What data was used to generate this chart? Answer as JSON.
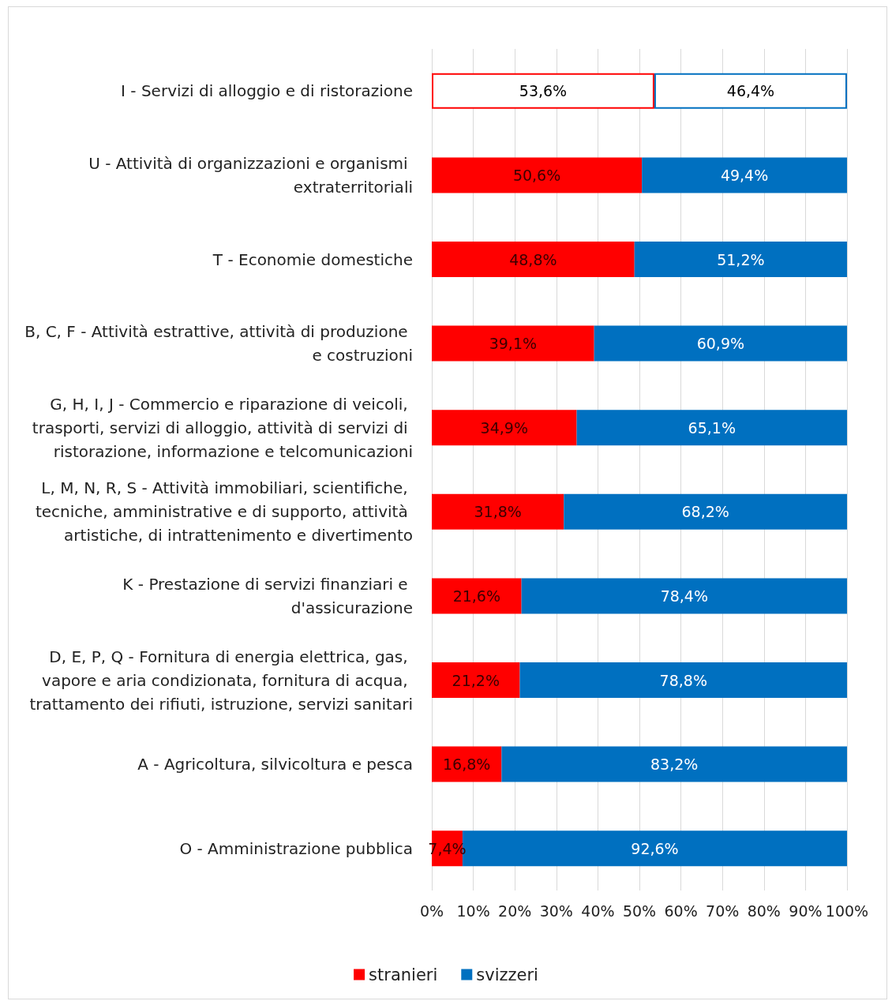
{
  "chart_data": {
    "type": "bar",
    "orientation": "horizontal",
    "stacked": true,
    "categories": [
      "I - Servizi di alloggio e di ristorazione",
      "U - Attività di organizzazioni e organismi extraterritoriali",
      "T - Economie domestiche",
      "B, C, F - Attività estrattive, attività di produzione e costruzioni",
      "G, H, I, J - Commercio e riparazione di veicoli, trasporti, servizi di alloggio, attività di servizi di ristorazione, informazione e telcomunicazioni",
      "L, M, N, R, S - Attività immobiliari, scientifiche, tecniche, amministrative e di supporto, attività artistiche, di intrattenimento e divertimento",
      "K - Prestazione di servizi finanziari e d'assicurazione",
      "D, E, P, Q - Fornitura di energia elettrica, gas, vapore e aria condizionata, fornitura di acqua, trattamento dei rifiuti, istruzione, servizi sanitari",
      "A - Agricoltura, silvicoltura e pesca",
      "O - Amministrazione pubblica"
    ],
    "series": [
      {
        "name": "stranieri",
        "color": "#ff0000",
        "colors": [
          "#ffffff",
          "#ff0000",
          "#ff0000",
          "#ff0000",
          "#ff0000",
          "#ff0000",
          "#ff0000",
          "#ff0000",
          "#ff0000",
          "#ff0000"
        ],
        "values": [
          53.6,
          50.6,
          48.8,
          39.1,
          34.9,
          31.8,
          21.6,
          21.2,
          16.8,
          7.4
        ],
        "value_labels": [
          "53,6%",
          "50,6%",
          "48,8%",
          "39,1%",
          "34,9%",
          "31,8%",
          "21,6%",
          "21,2%",
          "16,8%",
          "7,4%"
        ]
      },
      {
        "name": "svizzeri",
        "color": "#0070c0",
        "colors": [
          "#ffffff",
          "#0070c0",
          "#0070c0",
          "#0070c0",
          "#0070c0",
          "#0070c0",
          "#0070c0",
          "#0070c0",
          "#0070c0",
          "#0070c0"
        ],
        "values": [
          46.4,
          49.4,
          51.2,
          60.9,
          65.1,
          68.2,
          78.4,
          78.8,
          83.2,
          92.6
        ],
        "value_labels": [
          "46,4%",
          "49,4%",
          "51,2%",
          "60,9%",
          "65,1%",
          "68,2%",
          "78,4%",
          "78,8%",
          "83,2%",
          "92,6%"
        ]
      }
    ],
    "xlim": [
      0,
      100
    ],
    "xticks": [
      {
        "value": 0,
        "label": "0%"
      },
      {
        "value": 10,
        "label": "10%"
      },
      {
        "value": 20,
        "label": "20%"
      },
      {
        "value": 30,
        "label": "30%"
      },
      {
        "value": 40,
        "label": "40%"
      },
      {
        "value": 50,
        "label": "50%"
      },
      {
        "value": 60,
        "label": "60%"
      },
      {
        "value": 70,
        "label": "70%"
      },
      {
        "value": 80,
        "label": "80%"
      },
      {
        "value": 90,
        "label": "90%"
      },
      {
        "value": 100,
        "label": "100%"
      }
    ],
    "grid": "x",
    "legend": "bottom"
  }
}
